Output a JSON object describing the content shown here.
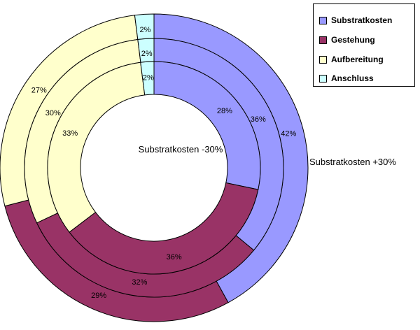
{
  "chart_data": {
    "type": "doughnut",
    "categories": [
      "Substratkosten",
      "Gestehung",
      "Aufbereitung",
      "Anschluss"
    ],
    "colors": [
      "#9999ff",
      "#993366",
      "#ffffcc",
      "#ccffff"
    ],
    "series": [
      {
        "values": [
          42,
          29,
          27,
          2
        ],
        "labels": [
          "42%",
          "29%",
          "27%",
          "2%"
        ]
      },
      {
        "values": [
          36,
          32,
          30,
          2
        ],
        "labels": [
          "36%",
          "32%",
          "30%",
          "2%"
        ]
      },
      {
        "values": [
          28,
          36,
          33,
          2
        ],
        "labels": [
          "28%",
          "36%",
          "33%",
          "2%"
        ]
      }
    ],
    "outer_label": "Substratkosten +30%",
    "inner_label": "Substratkosten -30%",
    "legend_position": "top-right"
  }
}
